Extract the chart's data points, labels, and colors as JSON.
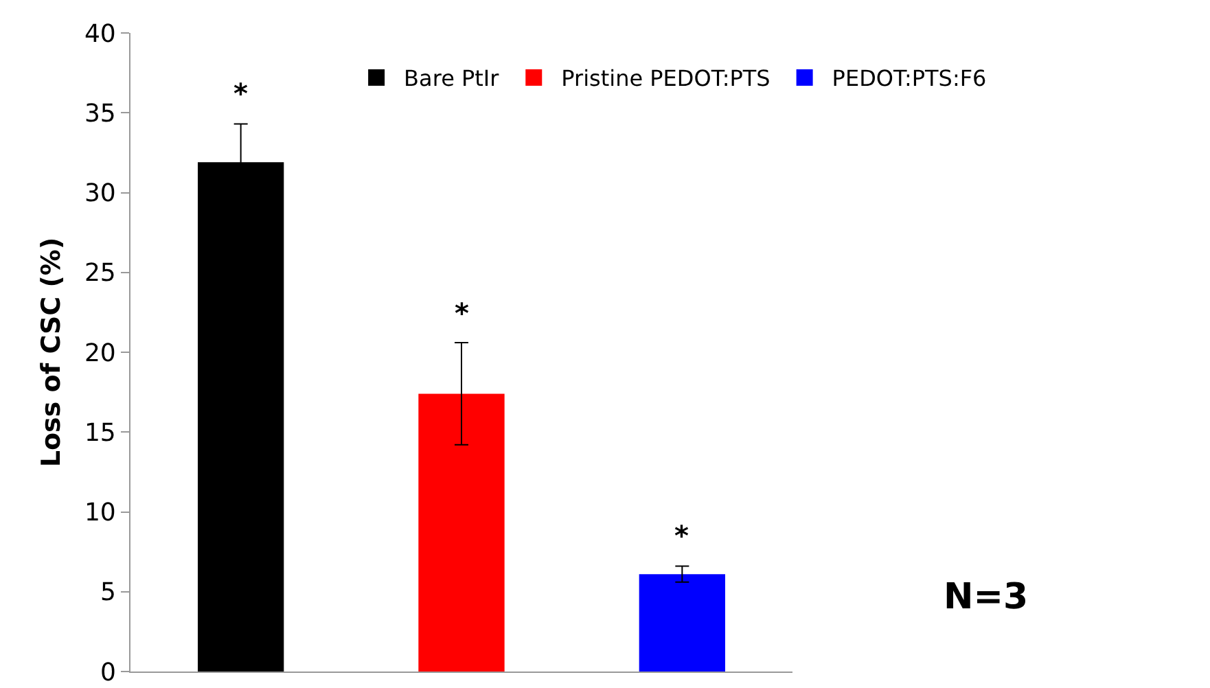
{
  "chart_data": {
    "type": "bar",
    "ylabel": "Loss of CSC (%)",
    "categories": [
      null
    ],
    "series": [
      {
        "name": "Bare PtIr",
        "color": "#000000",
        "values": [
          31.9
        ],
        "errors": [
          2.4
        ]
      },
      {
        "name": "Pristine PEDOT:PTS",
        "color": "#ff0000",
        "values": [
          17.4
        ],
        "errors": [
          3.2
        ]
      },
      {
        "name": "PEDOT:PTS:F6",
        "color": "#0000ff",
        "values": [
          6.1
        ],
        "errors": [
          0.5
        ]
      }
    ],
    "ylim": [
      0,
      40
    ],
    "yticks": [
      0,
      5,
      10,
      15,
      20,
      25,
      30,
      35,
      40
    ],
    "grid": false,
    "legend": "top right",
    "annotations": [
      "*",
      "*",
      "*",
      "N=3"
    ]
  }
}
